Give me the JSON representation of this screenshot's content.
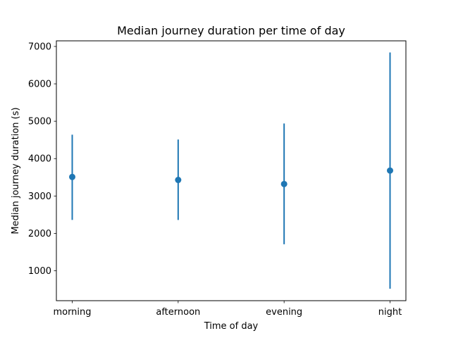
{
  "chart_data": {
    "type": "scatter",
    "title": "Median journey duration per time of day",
    "xlabel": "Time of day",
    "ylabel": "Median journey duration (s)",
    "categories": [
      "morning",
      "afternoon",
      "evening",
      "night"
    ],
    "series": [
      {
        "values": [
          3510,
          3430,
          3320,
          3680
        ],
        "error_low": [
          2360,
          2360,
          1710,
          520
        ],
        "error_high": [
          4640,
          4510,
          4940,
          6840
        ]
      }
    ],
    "ylim": [
      200,
      7150
    ],
    "yticks": [
      1000,
      2000,
      3000,
      4000,
      5000,
      6000,
      7000
    ],
    "grid": false,
    "color": "#1f77b4"
  }
}
